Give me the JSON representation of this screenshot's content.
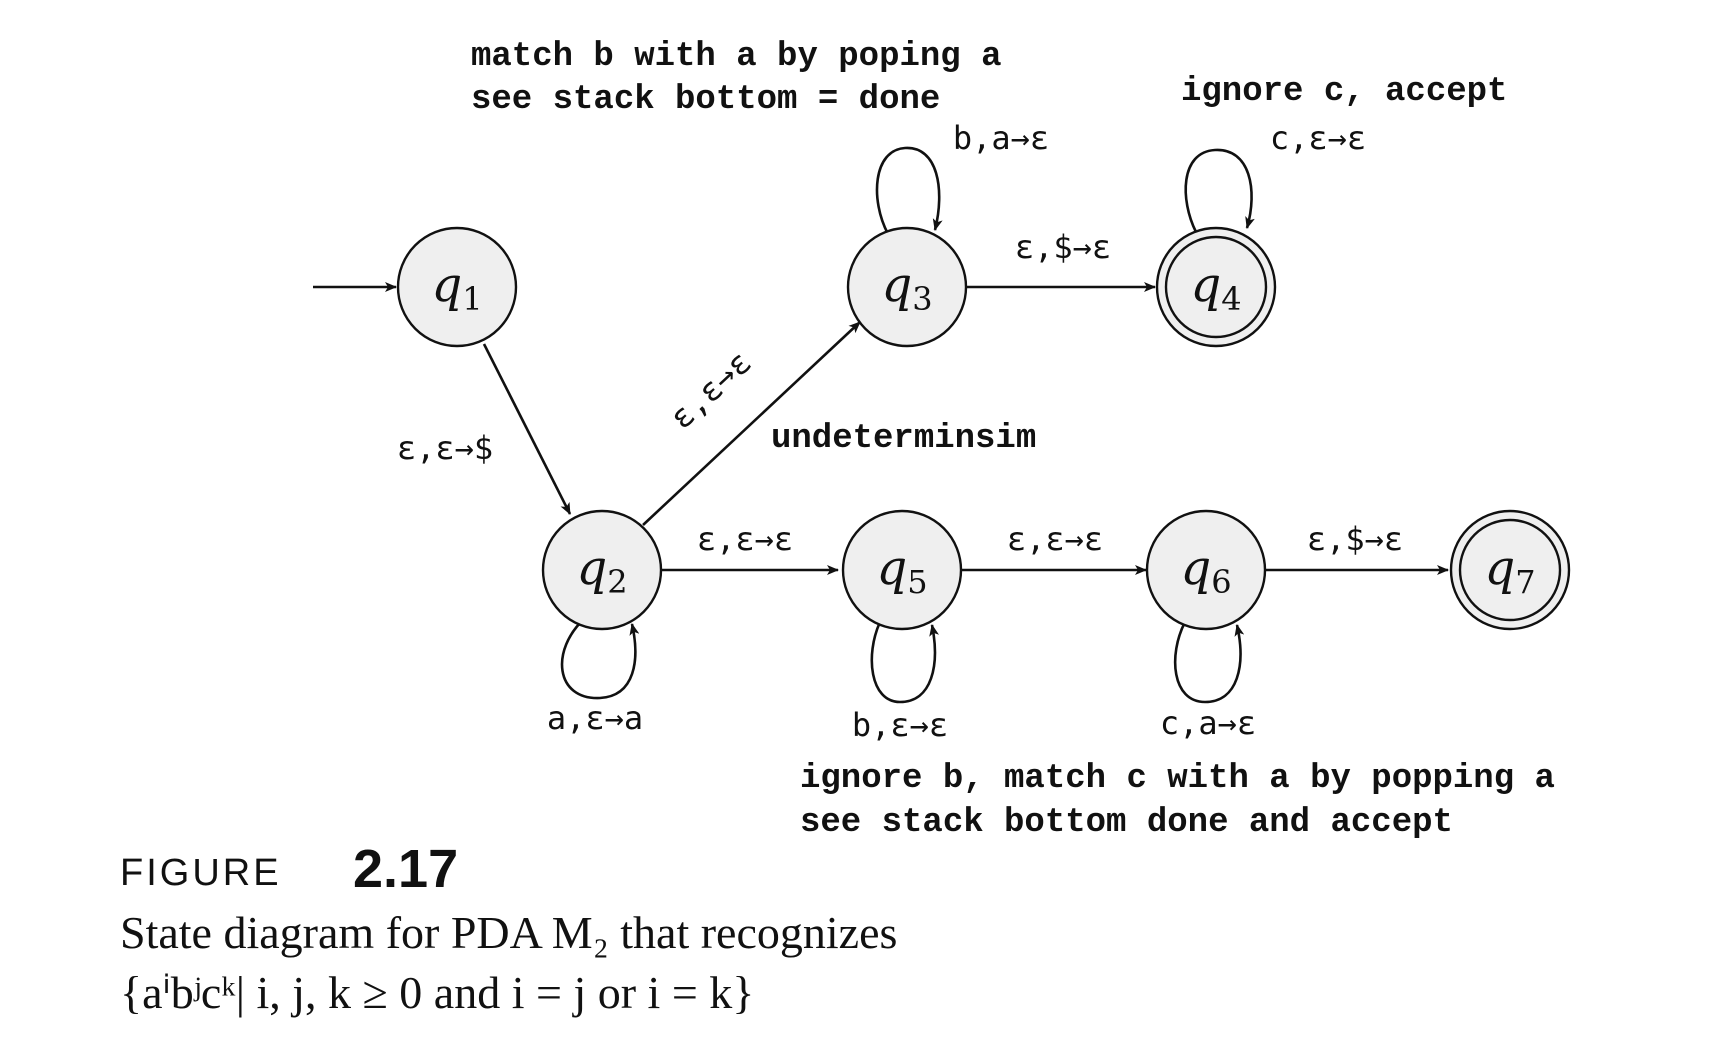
{
  "states": [
    {
      "id": "q1",
      "letter": "q",
      "sub": "1",
      "accept": false
    },
    {
      "id": "q2",
      "letter": "q",
      "sub": "2",
      "accept": false
    },
    {
      "id": "q3",
      "letter": "q",
      "sub": "3",
      "accept": false
    },
    {
      "id": "q4",
      "letter": "q",
      "sub": "4",
      "accept": true
    },
    {
      "id": "q5",
      "letter": "q",
      "sub": "5",
      "accept": false
    },
    {
      "id": "q6",
      "letter": "q",
      "sub": "6",
      "accept": false
    },
    {
      "id": "q7",
      "letter": "q",
      "sub": "7",
      "accept": true
    }
  ],
  "start_state": "q1",
  "transitions": [
    {
      "from": "q1",
      "to": "q2",
      "label": "ε,ε→$"
    },
    {
      "from": "q2",
      "to": "q3",
      "label": "ε,ε→ε"
    },
    {
      "from": "q2",
      "to": "q5",
      "label": "ε,ε→ε"
    },
    {
      "from": "q3",
      "to": "q4",
      "label": "ε,$→ε"
    },
    {
      "from": "q5",
      "to": "q6",
      "label": "ε,ε→ε"
    },
    {
      "from": "q6",
      "to": "q7",
      "label": "ε,$→ε"
    },
    {
      "from": "q2",
      "to": "q2",
      "label": "a,ε→a"
    },
    {
      "from": "q3",
      "to": "q3",
      "label": "b,a→ε"
    },
    {
      "from": "q4",
      "to": "q4",
      "label": "c,ε→ε"
    },
    {
      "from": "q5",
      "to": "q5",
      "label": "b,ε→ε"
    },
    {
      "from": "q6",
      "to": "q6",
      "label": "c,a→ε"
    }
  ],
  "annotations": {
    "top_left_line1": "match b with a by poping a",
    "top_left_line2": "see stack bottom = done",
    "top_right": "ignore c, accept",
    "middle": "undeterminsim",
    "bottom_line1": "ignore b, match c with a by popping a",
    "bottom_line2": "see stack bottom done and accept"
  },
  "figure": {
    "word": "FIGURE",
    "number": "2.17",
    "caption_line1": "State diagram for PDA M₂ that recognizes",
    "caption_line2": "{aⁱbʲcᵏ| i, j, k ≥ 0 and i = j or i = k}"
  }
}
